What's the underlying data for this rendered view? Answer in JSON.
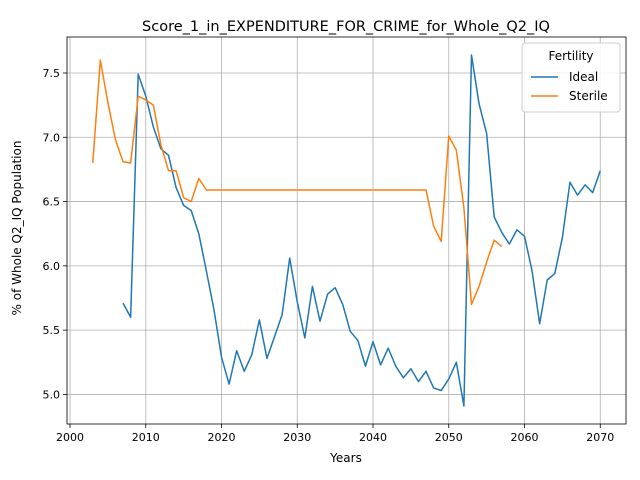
{
  "chart_data": {
    "type": "line",
    "title": "Score_1_in_EXPENDITURE_FOR_CRIME_for_Whole_Q2_IQ",
    "xlabel": "Years",
    "ylabel": "% of Whole Q2_IQ Population",
    "xlim": [
      1999.6,
      2073.4
    ],
    "ylim": [
      4.77,
      7.78
    ],
    "xticks": [
      2000,
      2010,
      2020,
      2030,
      2040,
      2050,
      2060,
      2070
    ],
    "yticks": [
      5.0,
      5.5,
      6.0,
      6.5,
      7.0,
      7.5
    ],
    "xtick_labels": [
      "2000",
      "2010",
      "2020",
      "2030",
      "2040",
      "2050",
      "2060",
      "2070"
    ],
    "ytick_labels": [
      "5.0",
      "5.5",
      "6.0",
      "6.5",
      "7.0",
      "7.5"
    ],
    "grid": true,
    "legend": {
      "title": "Fertility",
      "placement": "top-right"
    },
    "series": [
      {
        "name": "Ideal",
        "color": "#1f77b4",
        "x": [
          2007,
          2008,
          2009,
          2010,
          2011,
          2012,
          2013,
          2014,
          2015,
          2016,
          2017,
          2018,
          2019,
          2020,
          2021,
          2022,
          2023,
          2024,
          2025,
          2026,
          2027,
          2028,
          2029,
          2030,
          2031,
          2032,
          2033,
          2034,
          2035,
          2036,
          2037,
          2038,
          2039,
          2040,
          2041,
          2042,
          2043,
          2044,
          2045,
          2046,
          2047,
          2048,
          2049,
          2050,
          2051,
          2052,
          2053,
          2054,
          2055,
          2056,
          2057,
          2058,
          2059,
          2060,
          2061,
          2062,
          2063,
          2064,
          2065,
          2066,
          2067,
          2068,
          2069,
          2070
        ],
        "y": [
          5.71,
          5.6,
          7.49,
          7.32,
          7.08,
          6.91,
          6.86,
          6.61,
          6.47,
          6.43,
          6.25,
          5.96,
          5.66,
          5.29,
          5.08,
          5.34,
          5.18,
          5.31,
          5.58,
          5.28,
          5.45,
          5.62,
          6.06,
          5.72,
          5.44,
          5.84,
          5.57,
          5.78,
          5.83,
          5.7,
          5.49,
          5.42,
          5.22,
          5.41,
          5.23,
          5.36,
          5.22,
          5.13,
          5.2,
          5.1,
          5.18,
          5.05,
          5.03,
          5.12,
          5.25,
          4.91,
          7.64,
          7.26,
          7.03,
          6.38,
          6.26,
          6.17,
          6.28,
          6.23,
          5.96,
          5.55,
          5.89,
          5.94,
          6.22,
          6.65,
          6.55,
          6.63,
          6.57,
          6.74
        ]
      },
      {
        "name": "Sterile",
        "color": "#ff7f0e",
        "x": [
          2003,
          2004,
          2005,
          2006,
          2007,
          2008,
          2009,
          2010,
          2011,
          2012,
          2013,
          2014,
          2015,
          2016,
          2017,
          2018,
          2019,
          2020,
          2021,
          2022,
          2023,
          2024,
          2025,
          2026,
          2027,
          2028,
          2029,
          2030,
          2031,
          2032,
          2033,
          2034,
          2035,
          2036,
          2037,
          2038,
          2039,
          2040,
          2041,
          2042,
          2043,
          2044,
          2045,
          2046,
          2047,
          2048,
          2049,
          2050,
          2051,
          2052,
          2053,
          2054,
          2055,
          2056,
          2057
        ],
        "y": [
          6.8,
          7.6,
          7.27,
          6.98,
          6.81,
          6.8,
          7.32,
          7.29,
          7.25,
          6.94,
          6.74,
          6.74,
          6.53,
          6.5,
          6.68,
          6.59,
          6.59,
          6.59,
          6.59,
          6.59,
          6.59,
          6.59,
          6.59,
          6.59,
          6.59,
          6.59,
          6.59,
          6.59,
          6.59,
          6.59,
          6.59,
          6.59,
          6.59,
          6.59,
          6.59,
          6.59,
          6.59,
          6.59,
          6.59,
          6.59,
          6.59,
          6.59,
          6.59,
          6.59,
          6.59,
          6.31,
          6.19,
          7.01,
          6.9,
          6.45,
          5.7,
          5.84,
          6.03,
          6.2,
          6.15
        ]
      }
    ]
  }
}
